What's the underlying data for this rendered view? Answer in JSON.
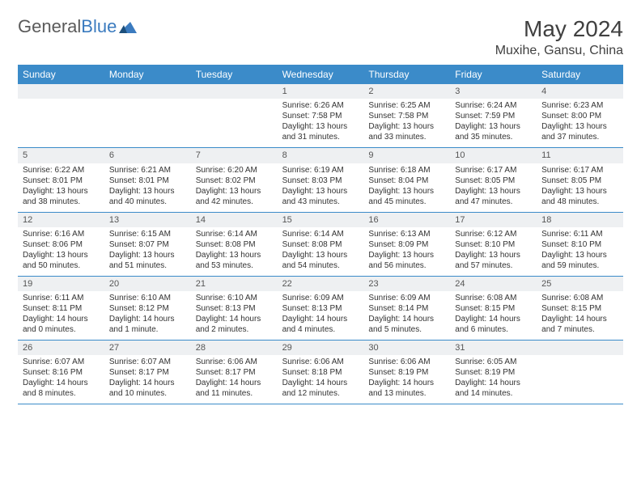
{
  "logo": {
    "text1": "General",
    "text2": "Blue"
  },
  "title": "May 2024",
  "location": "Muxihe, Gansu, China",
  "colors": {
    "header_bg": "#3b8bc9",
    "header_text": "#ffffff",
    "daynum_bg": "#eef0f2",
    "border": "#3b8bc9",
    "text": "#333333",
    "logo_gray": "#5a5a5a",
    "logo_blue": "#3b7bbf"
  },
  "weekdays": [
    "Sunday",
    "Monday",
    "Tuesday",
    "Wednesday",
    "Thursday",
    "Friday",
    "Saturday"
  ],
  "weeks": [
    {
      "days": [
        {
          "empty": true
        },
        {
          "empty": true
        },
        {
          "empty": true
        },
        {
          "num": "1",
          "sunrise": "Sunrise: 6:26 AM",
          "sunset": "Sunset: 7:58 PM",
          "daylight1": "Daylight: 13 hours",
          "daylight2": "and 31 minutes."
        },
        {
          "num": "2",
          "sunrise": "Sunrise: 6:25 AM",
          "sunset": "Sunset: 7:58 PM",
          "daylight1": "Daylight: 13 hours",
          "daylight2": "and 33 minutes."
        },
        {
          "num": "3",
          "sunrise": "Sunrise: 6:24 AM",
          "sunset": "Sunset: 7:59 PM",
          "daylight1": "Daylight: 13 hours",
          "daylight2": "and 35 minutes."
        },
        {
          "num": "4",
          "sunrise": "Sunrise: 6:23 AM",
          "sunset": "Sunset: 8:00 PM",
          "daylight1": "Daylight: 13 hours",
          "daylight2": "and 37 minutes."
        }
      ]
    },
    {
      "days": [
        {
          "num": "5",
          "sunrise": "Sunrise: 6:22 AM",
          "sunset": "Sunset: 8:01 PM",
          "daylight1": "Daylight: 13 hours",
          "daylight2": "and 38 minutes."
        },
        {
          "num": "6",
          "sunrise": "Sunrise: 6:21 AM",
          "sunset": "Sunset: 8:01 PM",
          "daylight1": "Daylight: 13 hours",
          "daylight2": "and 40 minutes."
        },
        {
          "num": "7",
          "sunrise": "Sunrise: 6:20 AM",
          "sunset": "Sunset: 8:02 PM",
          "daylight1": "Daylight: 13 hours",
          "daylight2": "and 42 minutes."
        },
        {
          "num": "8",
          "sunrise": "Sunrise: 6:19 AM",
          "sunset": "Sunset: 8:03 PM",
          "daylight1": "Daylight: 13 hours",
          "daylight2": "and 43 minutes."
        },
        {
          "num": "9",
          "sunrise": "Sunrise: 6:18 AM",
          "sunset": "Sunset: 8:04 PM",
          "daylight1": "Daylight: 13 hours",
          "daylight2": "and 45 minutes."
        },
        {
          "num": "10",
          "sunrise": "Sunrise: 6:17 AM",
          "sunset": "Sunset: 8:05 PM",
          "daylight1": "Daylight: 13 hours",
          "daylight2": "and 47 minutes."
        },
        {
          "num": "11",
          "sunrise": "Sunrise: 6:17 AM",
          "sunset": "Sunset: 8:05 PM",
          "daylight1": "Daylight: 13 hours",
          "daylight2": "and 48 minutes."
        }
      ]
    },
    {
      "days": [
        {
          "num": "12",
          "sunrise": "Sunrise: 6:16 AM",
          "sunset": "Sunset: 8:06 PM",
          "daylight1": "Daylight: 13 hours",
          "daylight2": "and 50 minutes."
        },
        {
          "num": "13",
          "sunrise": "Sunrise: 6:15 AM",
          "sunset": "Sunset: 8:07 PM",
          "daylight1": "Daylight: 13 hours",
          "daylight2": "and 51 minutes."
        },
        {
          "num": "14",
          "sunrise": "Sunrise: 6:14 AM",
          "sunset": "Sunset: 8:08 PM",
          "daylight1": "Daylight: 13 hours",
          "daylight2": "and 53 minutes."
        },
        {
          "num": "15",
          "sunrise": "Sunrise: 6:14 AM",
          "sunset": "Sunset: 8:08 PM",
          "daylight1": "Daylight: 13 hours",
          "daylight2": "and 54 minutes."
        },
        {
          "num": "16",
          "sunrise": "Sunrise: 6:13 AM",
          "sunset": "Sunset: 8:09 PM",
          "daylight1": "Daylight: 13 hours",
          "daylight2": "and 56 minutes."
        },
        {
          "num": "17",
          "sunrise": "Sunrise: 6:12 AM",
          "sunset": "Sunset: 8:10 PM",
          "daylight1": "Daylight: 13 hours",
          "daylight2": "and 57 minutes."
        },
        {
          "num": "18",
          "sunrise": "Sunrise: 6:11 AM",
          "sunset": "Sunset: 8:10 PM",
          "daylight1": "Daylight: 13 hours",
          "daylight2": "and 59 minutes."
        }
      ]
    },
    {
      "days": [
        {
          "num": "19",
          "sunrise": "Sunrise: 6:11 AM",
          "sunset": "Sunset: 8:11 PM",
          "daylight1": "Daylight: 14 hours",
          "daylight2": "and 0 minutes."
        },
        {
          "num": "20",
          "sunrise": "Sunrise: 6:10 AM",
          "sunset": "Sunset: 8:12 PM",
          "daylight1": "Daylight: 14 hours",
          "daylight2": "and 1 minute."
        },
        {
          "num": "21",
          "sunrise": "Sunrise: 6:10 AM",
          "sunset": "Sunset: 8:13 PM",
          "daylight1": "Daylight: 14 hours",
          "daylight2": "and 2 minutes."
        },
        {
          "num": "22",
          "sunrise": "Sunrise: 6:09 AM",
          "sunset": "Sunset: 8:13 PM",
          "daylight1": "Daylight: 14 hours",
          "daylight2": "and 4 minutes."
        },
        {
          "num": "23",
          "sunrise": "Sunrise: 6:09 AM",
          "sunset": "Sunset: 8:14 PM",
          "daylight1": "Daylight: 14 hours",
          "daylight2": "and 5 minutes."
        },
        {
          "num": "24",
          "sunrise": "Sunrise: 6:08 AM",
          "sunset": "Sunset: 8:15 PM",
          "daylight1": "Daylight: 14 hours",
          "daylight2": "and 6 minutes."
        },
        {
          "num": "25",
          "sunrise": "Sunrise: 6:08 AM",
          "sunset": "Sunset: 8:15 PM",
          "daylight1": "Daylight: 14 hours",
          "daylight2": "and 7 minutes."
        }
      ]
    },
    {
      "days": [
        {
          "num": "26",
          "sunrise": "Sunrise: 6:07 AM",
          "sunset": "Sunset: 8:16 PM",
          "daylight1": "Daylight: 14 hours",
          "daylight2": "and 8 minutes."
        },
        {
          "num": "27",
          "sunrise": "Sunrise: 6:07 AM",
          "sunset": "Sunset: 8:17 PM",
          "daylight1": "Daylight: 14 hours",
          "daylight2": "and 10 minutes."
        },
        {
          "num": "28",
          "sunrise": "Sunrise: 6:06 AM",
          "sunset": "Sunset: 8:17 PM",
          "daylight1": "Daylight: 14 hours",
          "daylight2": "and 11 minutes."
        },
        {
          "num": "29",
          "sunrise": "Sunrise: 6:06 AM",
          "sunset": "Sunset: 8:18 PM",
          "daylight1": "Daylight: 14 hours",
          "daylight2": "and 12 minutes."
        },
        {
          "num": "30",
          "sunrise": "Sunrise: 6:06 AM",
          "sunset": "Sunset: 8:19 PM",
          "daylight1": "Daylight: 14 hours",
          "daylight2": "and 13 minutes."
        },
        {
          "num": "31",
          "sunrise": "Sunrise: 6:05 AM",
          "sunset": "Sunset: 8:19 PM",
          "daylight1": "Daylight: 14 hours",
          "daylight2": "and 14 minutes."
        },
        {
          "empty": true
        }
      ]
    }
  ]
}
